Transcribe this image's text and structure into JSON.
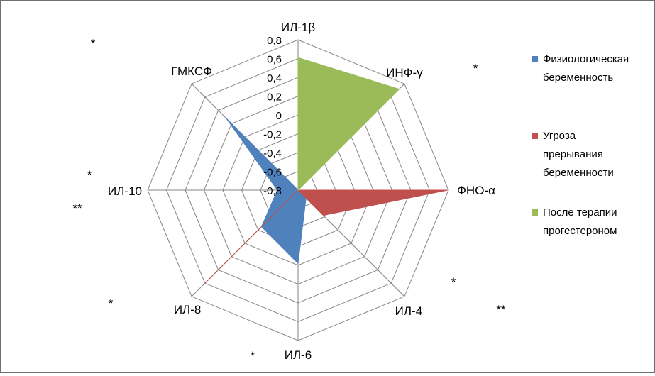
{
  "chart_data": {
    "type": "radar",
    "categories": [
      "ИЛ-1β",
      "ИНФ-γ",
      "ФНО-α",
      "ИЛ-4",
      "ИЛ-6",
      "ИЛ-8",
      "ИЛ-10",
      "ГМКСФ"
    ],
    "radial_ticks": [
      "-0,8",
      "-0,6",
      "-0,4",
      "-0,2",
      "0",
      "0,2",
      "0,4",
      "0,6",
      "0,8"
    ],
    "rlim": [
      -0.8,
      0.8
    ],
    "series": [
      {
        "name": "Физиологическая беременность",
        "color": "#4f81bd",
        "values": [
          -0.8,
          -0.8,
          -0.8,
          -0.68,
          -0.02,
          -0.25,
          -0.58,
          0.28
        ]
      },
      {
        "name": "Угроза прерывания беременности",
        "color": "#c0504d",
        "values": [
          -0.8,
          -0.8,
          0.79,
          -0.42,
          -0.8,
          0.6,
          -0.8,
          -0.8
        ]
      },
      {
        "name": "После терапии прогестероном",
        "color": "#9bbb59",
        "values": [
          0.61,
          0.72,
          -0.8,
          -0.8,
          -0.8,
          -0.8,
          -0.8,
          -0.8
        ]
      }
    ],
    "legend_position": "right",
    "annotations": [
      {
        "text": "*",
        "near": "top-left"
      },
      {
        "text": "*",
        "near": "ИНФ-γ"
      },
      {
        "text": "*",
        "near": "ИЛ-10"
      },
      {
        "text": "**",
        "near": "ИЛ-10"
      },
      {
        "text": "*",
        "near": "ИЛ-4"
      },
      {
        "text": "**",
        "near": "ИЛ-4"
      },
      {
        "text": "*",
        "near": "ИЛ-8"
      },
      {
        "text": "*",
        "near": "ИЛ-6"
      }
    ]
  }
}
